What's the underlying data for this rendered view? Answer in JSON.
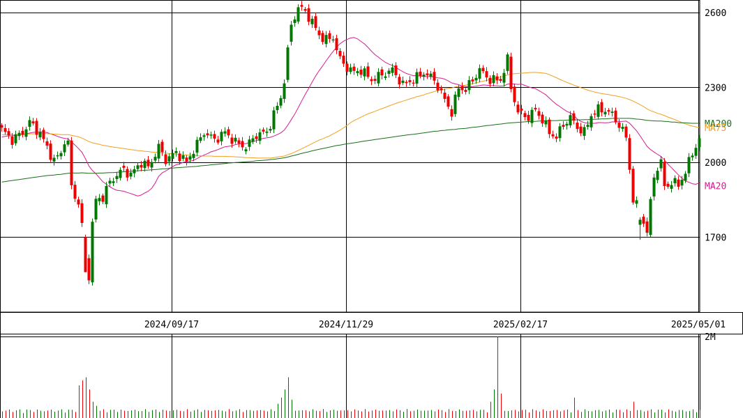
{
  "chart_data": {
    "type": "candlestick",
    "price_panel": {
      "ylim": [
        1400,
        2650
      ],
      "y_ticks": [
        {
          "value": 2600,
          "label": "2600"
        },
        {
          "value": 2300,
          "label": "2300"
        },
        {
          "value": 2000,
          "label": "2000"
        },
        {
          "value": 1700,
          "label": "1700"
        }
      ],
      "x_ticks": [
        {
          "index": 49,
          "label": "2024/09/17"
        },
        {
          "index": 99,
          "label": "2024/11/29"
        },
        {
          "index": 149,
          "label": "2025/02/17"
        },
        {
          "index": 200,
          "label": "2025/05/01"
        }
      ],
      "grid": true,
      "up_color": "#007700",
      "down_color": "#ee0000",
      "candles": [],
      "moving_averages": [
        {
          "name": "MA20",
          "color": "#d81b93",
          "values": []
        },
        {
          "name": "MA75",
          "color": "#f0a020",
          "values": []
        },
        {
          "name": "MA200",
          "color": "#1a6e1a",
          "values": []
        }
      ]
    },
    "volume_panel": {
      "y_ticks": [
        {
          "value": 2000000,
          "label": "2M"
        }
      ],
      "up_color": "#007700",
      "down_color": "#ee0000",
      "values": []
    }
  }
}
